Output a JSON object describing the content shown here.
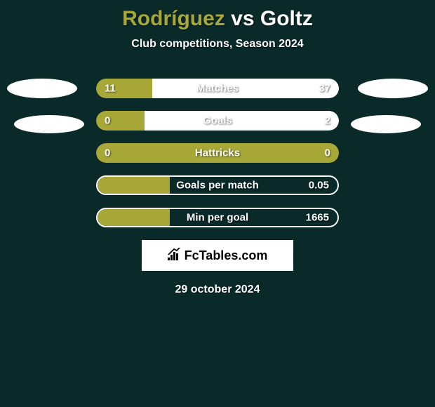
{
  "title": {
    "player1": "Rodríguez",
    "vs": "vs",
    "player2": "Goltz"
  },
  "subtitle": "Club competitions, Season 2024",
  "colors": {
    "p1": "#a8a838",
    "p2": "#ffffff",
    "bar_border": "#ffffff",
    "background": "#0a2a2a",
    "text": "#ffffff"
  },
  "stats": [
    {
      "label": "Matches",
      "left_val": "11",
      "right_val": "37",
      "left_pct": 23,
      "right_pct": 77,
      "left_color": "#a8a838",
      "right_color": "#ffffff",
      "style": "filled"
    },
    {
      "label": "Goals",
      "left_val": "0",
      "right_val": "2",
      "left_pct": 20,
      "right_pct": 80,
      "left_color": "#a8a838",
      "right_color": "#ffffff",
      "style": "filled"
    },
    {
      "label": "Hattricks",
      "left_val": "0",
      "right_val": "0",
      "left_pct": 100,
      "right_pct": 0,
      "left_color": "#a8a838",
      "right_color": "#ffffff",
      "style": "filled"
    },
    {
      "label": "Goals per match",
      "left_val": "",
      "right_val": "0.05",
      "left_pct": 30,
      "right_pct": 0,
      "left_color": "#a8a838",
      "right_color": "#ffffff",
      "style": "outline"
    },
    {
      "label": "Min per goal",
      "left_val": "",
      "right_val": "1665",
      "left_pct": 30,
      "right_pct": 0,
      "left_color": "#a8a838",
      "right_color": "#ffffff",
      "style": "outline"
    }
  ],
  "logo": "FcTables.com",
  "date": "29 october 2024"
}
